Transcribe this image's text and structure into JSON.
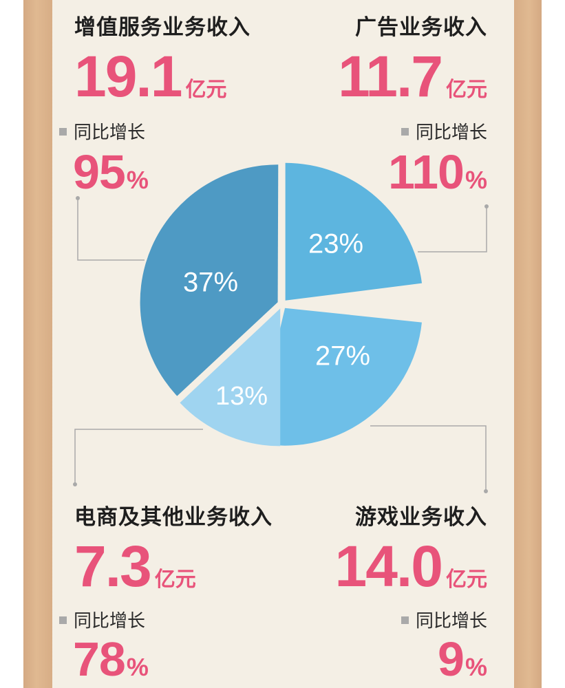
{
  "chart_data": {
    "type": "pie",
    "segments": [
      {
        "category": "增值服务业务收入",
        "amount": "19.1",
        "unit": "亿元",
        "growth_label": "同比增长",
        "growth": "95",
        "growth_unit": "%",
        "share": 37,
        "share_label": "37%",
        "color": "#4e9ac4"
      },
      {
        "category": "广告业务收入",
        "amount": "11.7",
        "unit": "亿元",
        "growth_label": "同比增长",
        "growth": "110",
        "growth_unit": "%",
        "share": 23,
        "share_label": "23%",
        "color": "#5db5df"
      },
      {
        "category": "游戏业务收入",
        "amount": "14.0",
        "unit": "亿元",
        "growth_label": "同比增长",
        "growth": "9",
        "growth_unit": "%",
        "share": 27,
        "share_label": "27%",
        "color": "#6ebfe8"
      },
      {
        "category": "电商及其他业务收入",
        "amount": "7.3",
        "unit": "亿元",
        "growth_label": "同比增长",
        "growth": "78",
        "growth_unit": "%",
        "share": 13,
        "share_label": "13%",
        "color": "#9fd4f0"
      }
    ],
    "legend": "none"
  },
  "colors": {
    "accent": "#e8537a",
    "paper": "#f4efe5",
    "frame": "#dcb58e",
    "connector": "#a9a9a9"
  }
}
